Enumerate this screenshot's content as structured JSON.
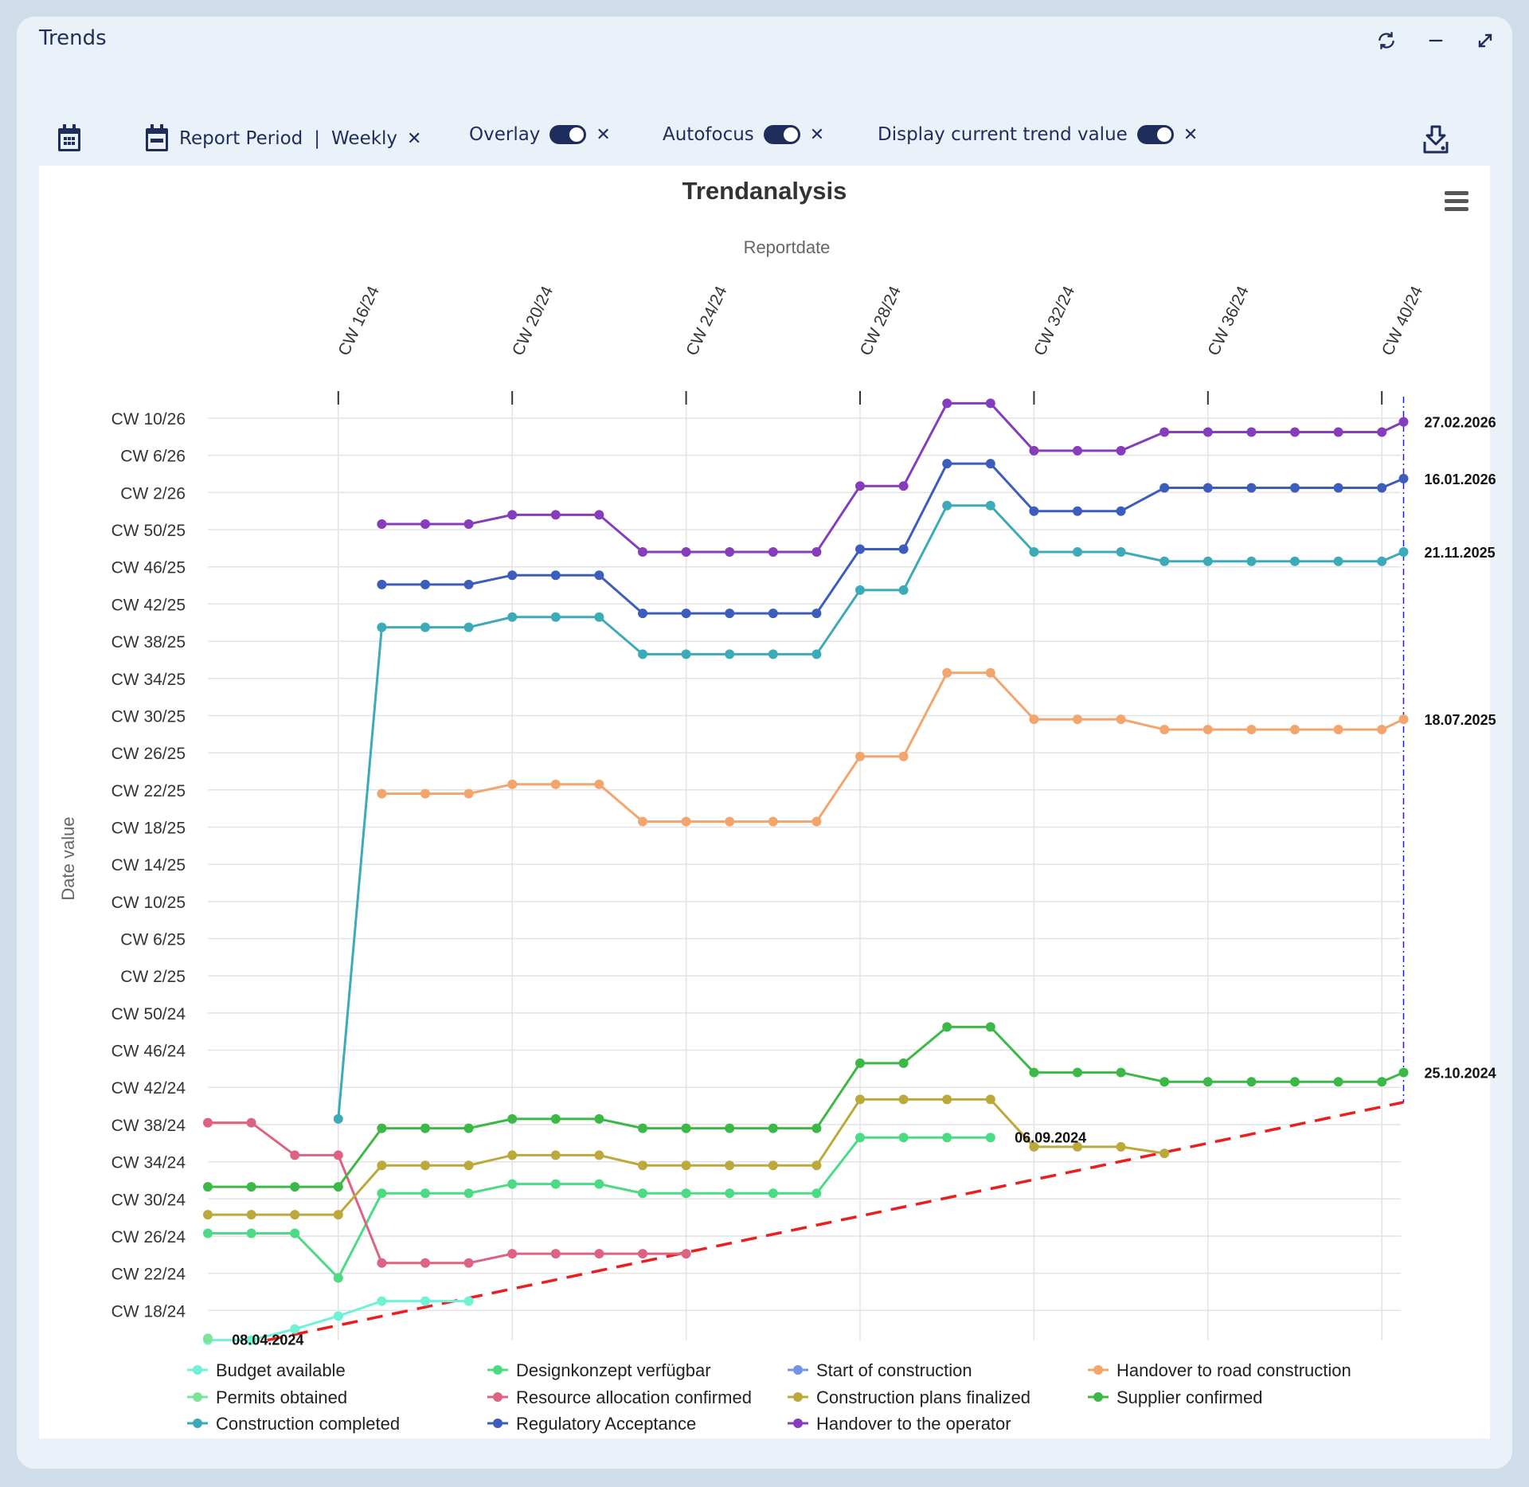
{
  "window": {
    "title": "Trends",
    "icons": [
      "refresh-icon",
      "minimize-icon",
      "expand-icon"
    ]
  },
  "toolbar": {
    "calendar_icon": "calendar-icon",
    "report_period_label": "Report Period",
    "report_period_separator": "|",
    "report_period_value": "Weekly",
    "overlay_label": "Overlay",
    "overlay_on": true,
    "autofocus_label": "Autofocus",
    "autofocus_on": true,
    "display_current_label": "Display current trend value",
    "display_current_on": true,
    "remove_symbol": "✕",
    "download_icon": "download-icon"
  },
  "chart_data": {
    "type": "line",
    "title": "Trendanalysis",
    "xlabel": "Reportdate",
    "ylabel": "Date value",
    "x_unit": "calendar week 2024",
    "y_unit": "week index (CW 1/24 = 1, CW 1/25 = 53, CW 1/26 = 105)",
    "x_ticks": [
      {
        "value": 16,
        "label": "CW 16/24"
      },
      {
        "value": 20,
        "label": "CW 20/24"
      },
      {
        "value": 24,
        "label": "CW 24/24"
      },
      {
        "value": 28,
        "label": "CW 28/24"
      },
      {
        "value": 32,
        "label": "CW 32/24"
      },
      {
        "value": 36,
        "label": "CW 36/24"
      },
      {
        "value": 40,
        "label": "CW 40/24"
      }
    ],
    "y_ticks": [
      {
        "value": 18,
        "label": "CW 18/24"
      },
      {
        "value": 22,
        "label": "CW 22/24"
      },
      {
        "value": 26,
        "label": "CW 26/24"
      },
      {
        "value": 30,
        "label": "CW 30/24"
      },
      {
        "value": 34,
        "label": "CW 34/24"
      },
      {
        "value": 38,
        "label": "CW 38/24"
      },
      {
        "value": 42,
        "label": "CW 42/24"
      },
      {
        "value": 46,
        "label": "CW 46/24"
      },
      {
        "value": 50,
        "label": "CW 50/24"
      },
      {
        "value": 54,
        "label": "CW 2/25"
      },
      {
        "value": 58,
        "label": "CW 6/25"
      },
      {
        "value": 62,
        "label": "CW 10/25"
      },
      {
        "value": 66,
        "label": "CW 14/25"
      },
      {
        "value": 70,
        "label": "CW 18/25"
      },
      {
        "value": 74,
        "label": "CW 22/25"
      },
      {
        "value": 78,
        "label": "CW 26/25"
      },
      {
        "value": 82,
        "label": "CW 30/25"
      },
      {
        "value": 86,
        "label": "CW 34/25"
      },
      {
        "value": 90,
        "label": "CW 38/25"
      },
      {
        "value": 94,
        "label": "CW 42/25"
      },
      {
        "value": 98,
        "label": "CW 46/25"
      },
      {
        "value": 102,
        "label": "CW 50/25"
      },
      {
        "value": 106,
        "label": "CW 2/26"
      },
      {
        "value": 110,
        "label": "CW 6/26"
      },
      {
        "value": 114,
        "label": "CW 10/26"
      }
    ],
    "xlim": [
      13,
      40.5
    ],
    "ylim": [
      14,
      114
    ],
    "grid": true,
    "legend_position": "bottom",
    "series": [
      {
        "name": "Budget available",
        "color": "#6ff2d6",
        "points": [
          [
            13,
            14.8
          ],
          [
            14,
            14.8
          ],
          [
            15,
            16.0
          ],
          [
            16,
            17.4
          ],
          [
            17,
            19.0
          ],
          [
            18,
            19.0
          ],
          [
            19,
            19.0
          ]
        ]
      },
      {
        "name": "Designkonzept verfügbar",
        "color": "#4cdb85",
        "points": [
          [
            13,
            26.3
          ],
          [
            14,
            26.3
          ],
          [
            15,
            26.3
          ],
          [
            16,
            21.5
          ],
          [
            17,
            30.6
          ],
          [
            18,
            30.6
          ],
          [
            19,
            30.6
          ],
          [
            20,
            31.6
          ],
          [
            21,
            31.6
          ],
          [
            22,
            31.6
          ],
          [
            23,
            30.6
          ],
          [
            24,
            30.6
          ],
          [
            25,
            30.6
          ],
          [
            26,
            30.6
          ],
          [
            27,
            30.6
          ],
          [
            28,
            36.6
          ],
          [
            29,
            36.6
          ],
          [
            30,
            36.6
          ],
          [
            31,
            36.6
          ]
        ]
      },
      {
        "name": "Start of construction",
        "color": "#7593e6",
        "points": []
      },
      {
        "name": "Handover to road construction",
        "color": "#f2a66e",
        "points": [
          [
            17,
            73.6
          ],
          [
            18,
            73.6
          ],
          [
            19,
            73.6
          ],
          [
            20,
            74.6
          ],
          [
            21,
            74.6
          ],
          [
            22,
            74.6
          ],
          [
            23,
            70.6
          ],
          [
            24,
            70.6
          ],
          [
            25,
            70.6
          ],
          [
            26,
            70.6
          ],
          [
            27,
            70.6
          ],
          [
            28,
            77.6
          ],
          [
            29,
            77.6
          ],
          [
            30,
            86.6
          ],
          [
            31,
            86.6
          ],
          [
            32,
            81.6
          ],
          [
            33,
            81.6
          ],
          [
            34,
            81.6
          ],
          [
            35,
            80.5
          ],
          [
            36,
            80.5
          ],
          [
            37,
            80.5
          ],
          [
            38,
            80.5
          ],
          [
            39,
            80.5
          ],
          [
            40,
            80.5
          ],
          [
            40.5,
            81.6
          ]
        ]
      },
      {
        "name": "Permits obtained",
        "color": "#7ee397",
        "points": [
          [
            13,
            15.0
          ]
        ]
      },
      {
        "name": "Resource allocation confirmed",
        "color": "#dd6383",
        "points": [
          [
            13,
            38.2
          ],
          [
            14,
            38.2
          ],
          [
            15,
            34.7
          ],
          [
            16,
            34.7
          ],
          [
            17,
            23.1
          ],
          [
            18,
            23.1
          ],
          [
            19,
            23.1
          ],
          [
            20,
            24.1
          ],
          [
            21,
            24.1
          ],
          [
            22,
            24.1
          ],
          [
            23,
            24.1
          ],
          [
            24,
            24.1
          ]
        ]
      },
      {
        "name": "Construction plans finalized",
        "color": "#bba93c",
        "points": [
          [
            13,
            28.3
          ],
          [
            14,
            28.3
          ],
          [
            15,
            28.3
          ],
          [
            16,
            28.3
          ],
          [
            17,
            33.6
          ],
          [
            18,
            33.6
          ],
          [
            19,
            33.6
          ],
          [
            20,
            34.7
          ],
          [
            21,
            34.7
          ],
          [
            22,
            34.7
          ],
          [
            23,
            33.6
          ],
          [
            24,
            33.6
          ],
          [
            25,
            33.6
          ],
          [
            26,
            33.6
          ],
          [
            27,
            33.6
          ],
          [
            28,
            40.7
          ],
          [
            29,
            40.7
          ],
          [
            30,
            40.7
          ],
          [
            31,
            40.7
          ],
          [
            32,
            35.6
          ],
          [
            33,
            35.6
          ],
          [
            34,
            35.6
          ],
          [
            35,
            34.9
          ]
        ]
      },
      {
        "name": "Supplier confirmed",
        "color": "#3cb847",
        "points": [
          [
            13,
            31.3
          ],
          [
            14,
            31.3
          ],
          [
            15,
            31.3
          ],
          [
            16,
            31.3
          ],
          [
            17,
            37.6
          ],
          [
            18,
            37.6
          ],
          [
            19,
            37.6
          ],
          [
            20,
            38.6
          ],
          [
            21,
            38.6
          ],
          [
            22,
            38.6
          ],
          [
            23,
            37.6
          ],
          [
            24,
            37.6
          ],
          [
            25,
            37.6
          ],
          [
            26,
            37.6
          ],
          [
            27,
            37.6
          ],
          [
            28,
            44.6
          ],
          [
            29,
            44.6
          ],
          [
            30,
            48.5
          ],
          [
            31,
            48.5
          ],
          [
            32,
            43.6
          ],
          [
            33,
            43.6
          ],
          [
            34,
            43.6
          ],
          [
            35,
            42.6
          ],
          [
            36,
            42.6
          ],
          [
            37,
            42.6
          ],
          [
            38,
            42.6
          ],
          [
            39,
            42.6
          ],
          [
            40,
            42.6
          ],
          [
            40.5,
            43.6
          ]
        ]
      },
      {
        "name": "Construction completed",
        "color": "#3daab8",
        "points": [
          [
            16,
            38.6
          ],
          [
            17,
            91.5
          ],
          [
            18,
            91.5
          ],
          [
            19,
            91.5
          ],
          [
            20,
            92.6
          ],
          [
            21,
            92.6
          ],
          [
            22,
            92.6
          ],
          [
            23,
            88.6
          ],
          [
            24,
            88.6
          ],
          [
            25,
            88.6
          ],
          [
            26,
            88.6
          ],
          [
            27,
            88.6
          ],
          [
            28,
            95.5
          ],
          [
            29,
            95.5
          ],
          [
            30,
            104.6
          ],
          [
            31,
            104.6
          ],
          [
            32,
            99.6
          ],
          [
            33,
            99.6
          ],
          [
            34,
            99.6
          ],
          [
            35,
            98.6
          ],
          [
            36,
            98.6
          ],
          [
            37,
            98.6
          ],
          [
            38,
            98.6
          ],
          [
            39,
            98.6
          ],
          [
            40,
            98.6
          ],
          [
            40.5,
            99.6
          ]
        ]
      },
      {
        "name": "Regulatory Acceptance",
        "color": "#3d5dbd",
        "points": [
          [
            17,
            96.1
          ],
          [
            18,
            96.1
          ],
          [
            19,
            96.1
          ],
          [
            20,
            97.1
          ],
          [
            21,
            97.1
          ],
          [
            22,
            97.1
          ],
          [
            23,
            93.0
          ],
          [
            24,
            93.0
          ],
          [
            25,
            93.0
          ],
          [
            26,
            93.0
          ],
          [
            27,
            93.0
          ],
          [
            28,
            99.9
          ],
          [
            29,
            99.9
          ],
          [
            30,
            109.1
          ],
          [
            31,
            109.1
          ],
          [
            32,
            104.0
          ],
          [
            33,
            104.0
          ],
          [
            34,
            104.0
          ],
          [
            35,
            106.5
          ],
          [
            36,
            106.5
          ],
          [
            37,
            106.5
          ],
          [
            38,
            106.5
          ],
          [
            39,
            106.5
          ],
          [
            40,
            106.5
          ],
          [
            40.5,
            107.5
          ]
        ]
      },
      {
        "name": "Handover to the operator",
        "color": "#853dbc",
        "points": [
          [
            17,
            102.6
          ],
          [
            18,
            102.6
          ],
          [
            19,
            102.6
          ],
          [
            20,
            103.6
          ],
          [
            21,
            103.6
          ],
          [
            22,
            103.6
          ],
          [
            23,
            99.6
          ],
          [
            24,
            99.6
          ],
          [
            25,
            99.6
          ],
          [
            26,
            99.6
          ],
          [
            27,
            99.6
          ],
          [
            28,
            106.7
          ],
          [
            29,
            106.7
          ],
          [
            30,
            115.6
          ],
          [
            31,
            115.6
          ],
          [
            32,
            110.5
          ],
          [
            33,
            110.5
          ],
          [
            34,
            110.5
          ],
          [
            35,
            112.5
          ],
          [
            36,
            112.5
          ],
          [
            37,
            112.5
          ],
          [
            38,
            112.5
          ],
          [
            39,
            112.5
          ],
          [
            40,
            112.5
          ],
          [
            40.5,
            113.6
          ]
        ]
      }
    ],
    "legend_order": [
      "Budget available",
      "Designkonzept verfügbar",
      "Start of construction",
      "Handover to road construction",
      "Permits obtained",
      "Resource allocation confirmed",
      "Construction plans finalized",
      "Supplier confirmed",
      "Construction completed",
      "Regulatory Acceptance",
      "Handover to the operator"
    ],
    "reference_line": {
      "name": "milestone-trend-diagonal",
      "color": "#ee1c1c",
      "from": [
        14,
        14.8
      ],
      "to": [
        40.5,
        40.4
      ]
    },
    "current_line": {
      "x": 40.5,
      "color": "#1a1aee"
    },
    "value_labels": [
      {
        "x": 40.5,
        "y": 113.6,
        "text": "27.02.2026"
      },
      {
        "x": 40.5,
        "y": 107.5,
        "text": "16.01.2026"
      },
      {
        "x": 40.5,
        "y": 99.6,
        "text": "21.11.2025"
      },
      {
        "x": 40.5,
        "y": 81.6,
        "text": "18.07.2025"
      },
      {
        "x": 40.5,
        "y": 43.6,
        "text": "25.10.2024"
      }
    ],
    "end_labels": [
      {
        "x": 31.5,
        "y": 36.6,
        "text": "06.09.2024"
      },
      {
        "x": 13.5,
        "y": 14.8,
        "text": "08.04.2024"
      }
    ]
  }
}
